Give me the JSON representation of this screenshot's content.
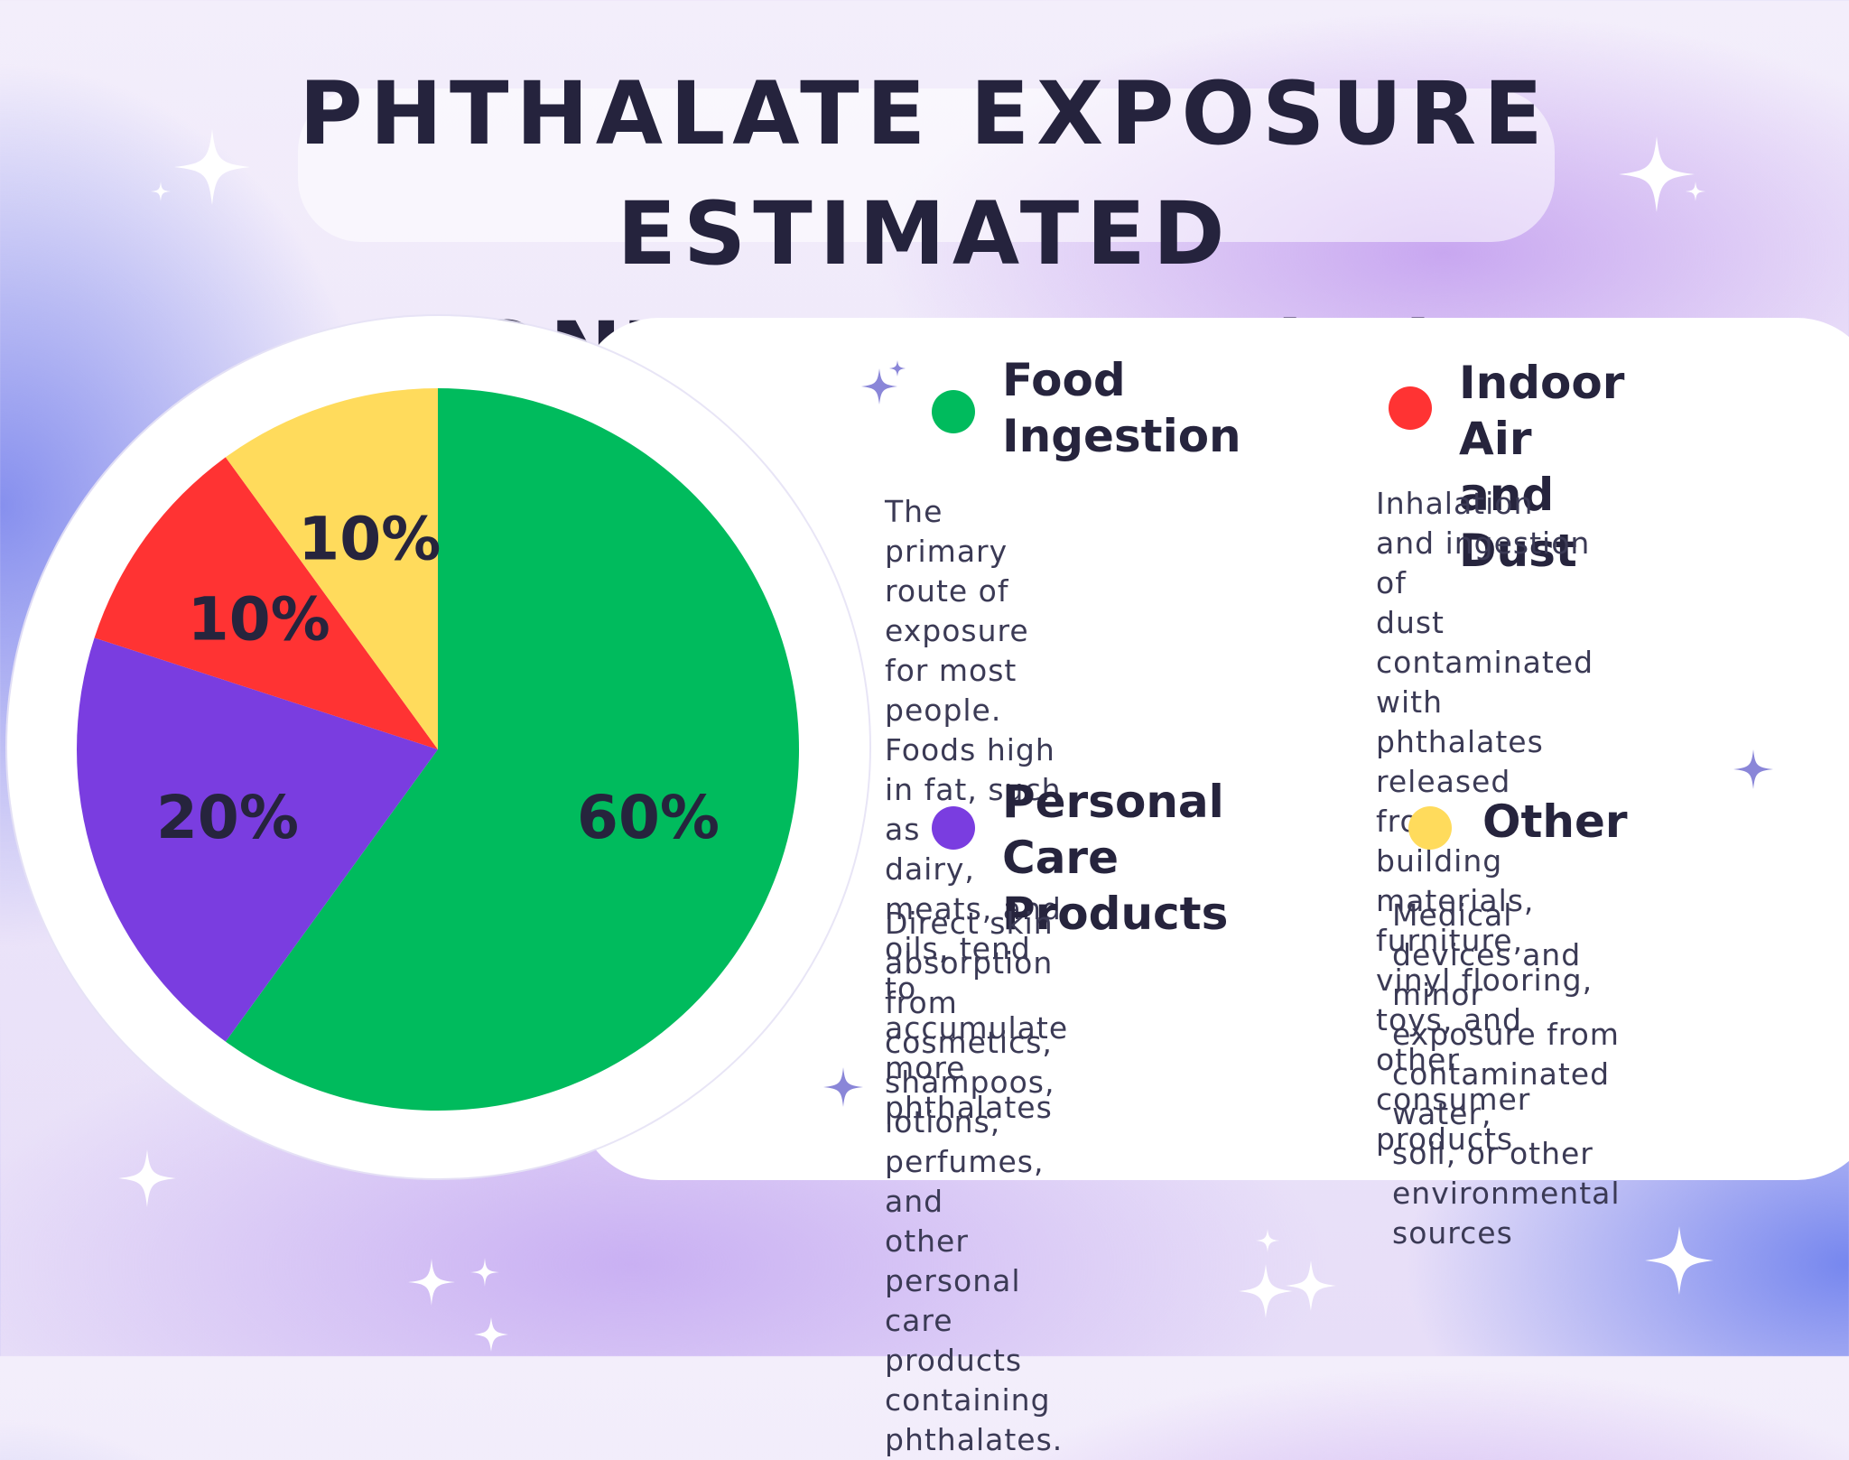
{
  "title_lines": [
    "PHTHALATE EXPOSURE ESTIMATED",
    "CONTRIBUTION (%)"
  ],
  "chart_data": {
    "type": "pie",
    "title": "PHTHALATE EXPOSURE ESTIMATED CONTRIBUTION (%)",
    "slices": [
      {
        "label": "Food Ingestion",
        "value": 60,
        "display": "60%",
        "color": "#00bb5d"
      },
      {
        "label": "Personal Care Products",
        "value": 20,
        "display": "20%",
        "color": "#7a3de0"
      },
      {
        "label": "Indoor Air and Dust",
        "value": 10,
        "display": "10%",
        "color": "#ff3333"
      },
      {
        "label": "Other",
        "value": 10,
        "display": "10%",
        "color": "#ffdb5c"
      }
    ]
  },
  "legend": {
    "food": {
      "title_lines": [
        "Food",
        "Ingestion"
      ],
      "color": "#00bb5d",
      "description_lines": [
        "The primary route of",
        "exposure for most people.",
        "Foods high in fat, such as",
        "dairy, meats, and oils, tend",
        "to accumulate more",
        "phthalates"
      ]
    },
    "indoor": {
      "title_lines": [
        "Indoor Air",
        "and Dust"
      ],
      "color": "#ff3333",
      "description_lines": [
        "Inhalation and ingestion of",
        "dust contaminated with",
        "phthalates released from",
        "building materials,",
        "furniture, vinyl flooring,",
        "toys, and other consumer",
        "products"
      ]
    },
    "personal": {
      "title_lines": [
        "Personal Care",
        "Products"
      ],
      "color": "#7a3de0",
      "description_lines": [
        "Direct skin absorption from",
        "cosmetics, shampoos,",
        "lotions, perfumes, and",
        "other personal care",
        "products containing",
        "phthalates."
      ]
    },
    "other": {
      "title_lines": [
        "Other"
      ],
      "color": "#ffdb5c",
      "description_lines": [
        "Medical devices and",
        "minor exposure from",
        "contaminated water,",
        "soil, or other",
        "environmental sources"
      ]
    }
  }
}
